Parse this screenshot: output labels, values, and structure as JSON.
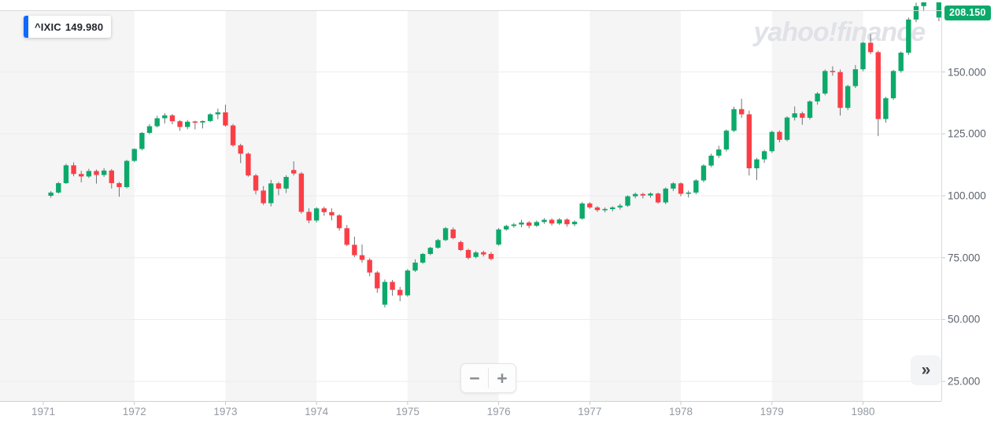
{
  "app": {
    "watermark": "yahoo!finance"
  },
  "legend": {
    "symbol": "^IXIC",
    "value": "149.980",
    "accent_color": "#0f69ff"
  },
  "price_badge": {
    "text": "208.150",
    "bg": "#0caa6a"
  },
  "controls": {
    "zoom_out": "−",
    "zoom_in": "+",
    "expand": "»"
  },
  "chart_data": {
    "type": "candlestick",
    "title": "^IXIC",
    "interval": "monthly",
    "x_axis": {
      "labels": [
        "1971",
        "1972",
        "1973",
        "1974",
        "1975",
        "1976",
        "1977",
        "1978",
        "1979",
        "1980"
      ]
    },
    "y_axis": {
      "labels": [
        "150.000",
        "125.000",
        "100.000",
        "75.000",
        "50.000",
        "25.000"
      ],
      "values": [
        150,
        125,
        100,
        75,
        50,
        25
      ],
      "range_visible": [
        25,
        175
      ],
      "position": "right"
    },
    "legend_position": "top-left",
    "grid": true,
    "colors": {
      "up": "#0caa6a",
      "down": "#fb3e46",
      "wick": "#6f7278",
      "grid": "#ececef",
      "stripe": "#f5f5f6",
      "border": "#d9dadd",
      "tick": "#c6c9ce",
      "watermark": "#e1e2e8"
    },
    "candle_format": [
      "date",
      "open",
      "high",
      "low",
      "close"
    ],
    "candles": [
      [
        "1971-02",
        100.0,
        101.9,
        99.2,
        101.3
      ],
      [
        "1971-03",
        101.3,
        105.6,
        100.9,
        105.1
      ],
      [
        "1971-04",
        105.1,
        112.9,
        104.8,
        112.3
      ],
      [
        "1971-05",
        112.3,
        113.5,
        107.9,
        108.8
      ],
      [
        "1971-06",
        108.8,
        110.1,
        105.4,
        107.8
      ],
      [
        "1971-07",
        107.8,
        110.9,
        107.2,
        110.0
      ],
      [
        "1971-08",
        110.0,
        110.6,
        104.9,
        108.4
      ],
      [
        "1971-09",
        108.4,
        111.2,
        107.6,
        110.2
      ],
      [
        "1971-10",
        110.2,
        110.8,
        102.9,
        105.1
      ],
      [
        "1971-11",
        105.1,
        105.6,
        99.6,
        103.5
      ],
      [
        "1971-12",
        103.5,
        114.5,
        103.0,
        114.1
      ],
      [
        "1972-01",
        114.1,
        119.2,
        113.6,
        118.9
      ],
      [
        "1972-02",
        118.9,
        125.8,
        118.4,
        125.4
      ],
      [
        "1972-03",
        125.4,
        128.9,
        124.9,
        128.1
      ],
      [
        "1972-04",
        128.1,
        132.3,
        127.6,
        131.3
      ],
      [
        "1972-05",
        131.3,
        133.4,
        129.2,
        132.5
      ],
      [
        "1972-06",
        132.5,
        133.0,
        128.9,
        130.1
      ],
      [
        "1972-07",
        130.1,
        130.6,
        126.2,
        127.8
      ],
      [
        "1972-08",
        127.8,
        130.6,
        126.9,
        129.9
      ],
      [
        "1972-09",
        129.9,
        130.3,
        126.8,
        129.6
      ],
      [
        "1972-10",
        129.6,
        130.4,
        127.2,
        130.2
      ],
      [
        "1972-11",
        130.2,
        133.4,
        129.7,
        132.9
      ],
      [
        "1972-12",
        132.9,
        135.2,
        130.9,
        133.7
      ],
      [
        "1973-01",
        133.7,
        136.8,
        127.9,
        128.4
      ],
      [
        "1973-02",
        128.4,
        129.0,
        119.8,
        120.4
      ],
      [
        "1973-03",
        120.4,
        121.0,
        113.2,
        117.0
      ],
      [
        "1973-04",
        117.0,
        117.5,
        107.7,
        108.2
      ],
      [
        "1973-05",
        108.2,
        108.8,
        100.6,
        102.1
      ],
      [
        "1973-06",
        102.1,
        103.9,
        96.3,
        97.0
      ],
      [
        "1973-07",
        97.0,
        106.4,
        95.7,
        105.0
      ],
      [
        "1973-08",
        105.0,
        105.6,
        100.2,
        102.9
      ],
      [
        "1973-09",
        102.9,
        108.3,
        101.1,
        107.6
      ],
      [
        "1973-10",
        110.4,
        113.9,
        108.2,
        109.0
      ],
      [
        "1973-11",
        109.0,
        109.6,
        92.8,
        93.5
      ],
      [
        "1973-12",
        93.5,
        94.9,
        88.9,
        90.0
      ],
      [
        "1974-01",
        90.0,
        95.4,
        89.2,
        94.9
      ],
      [
        "1974-02",
        94.9,
        95.6,
        91.9,
        93.4
      ],
      [
        "1974-03",
        93.4,
        94.9,
        90.1,
        92.1
      ],
      [
        "1974-04",
        92.1,
        92.6,
        85.9,
        86.9
      ],
      [
        "1974-05",
        86.9,
        88.2,
        79.7,
        80.2
      ],
      [
        "1974-06",
        80.2,
        83.5,
        75.2,
        76.0
      ],
      [
        "1974-07",
        76.0,
        80.3,
        72.9,
        74.1
      ],
      [
        "1974-08",
        74.1,
        74.8,
        67.5,
        69.0
      ],
      [
        "1974-09",
        69.0,
        69.6,
        60.8,
        62.6
      ],
      [
        "1974-10",
        56.0,
        66.2,
        54.9,
        65.2
      ],
      [
        "1974-11",
        65.2,
        66.0,
        59.6,
        62.0
      ],
      [
        "1974-12",
        62.0,
        63.2,
        57.4,
        59.8
      ],
      [
        "1975-01",
        59.8,
        70.4,
        59.2,
        69.8
      ],
      [
        "1975-02",
        69.8,
        74.3,
        69.2,
        73.0
      ],
      [
        "1975-03",
        73.0,
        76.9,
        72.5,
        76.5
      ],
      [
        "1975-04",
        76.5,
        79.4,
        76.0,
        79.0
      ],
      [
        "1975-05",
        79.0,
        82.6,
        78.6,
        82.1
      ],
      [
        "1975-06",
        82.1,
        87.4,
        81.7,
        86.9
      ],
      [
        "1975-07",
        86.4,
        87.2,
        82.4,
        82.9
      ],
      [
        "1975-08",
        81.3,
        81.9,
        77.6,
        78.1
      ],
      [
        "1975-09",
        78.1,
        78.6,
        74.3,
        74.9
      ],
      [
        "1975-10",
        75.3,
        77.7,
        74.7,
        77.1
      ],
      [
        "1975-11",
        77.2,
        77.8,
        75.5,
        76.3
      ],
      [
        "1975-12",
        76.5,
        77.2,
        73.9,
        74.5
      ],
      [
        "1976-01",
        80.3,
        87.0,
        79.8,
        86.4
      ],
      [
        "1976-02",
        86.4,
        88.3,
        85.9,
        87.8
      ],
      [
        "1976-03",
        87.8,
        89.0,
        87.1,
        88.4
      ],
      [
        "1976-04",
        88.4,
        90.3,
        87.3,
        89.2
      ],
      [
        "1976-05",
        89.2,
        89.8,
        86.9,
        87.9
      ],
      [
        "1976-06",
        87.9,
        90.0,
        87.4,
        89.4
      ],
      [
        "1976-07",
        89.4,
        91.0,
        88.7,
        90.3
      ],
      [
        "1976-08",
        90.3,
        90.9,
        88.0,
        88.8
      ],
      [
        "1976-09",
        88.8,
        91.0,
        88.2,
        90.4
      ],
      [
        "1976-10",
        90.4,
        90.9,
        87.5,
        88.5
      ],
      [
        "1976-11",
        88.5,
        90.1,
        87.7,
        89.5
      ],
      [
        "1976-12",
        90.8,
        97.5,
        90.3,
        96.9
      ],
      [
        "1977-01",
        96.9,
        97.4,
        94.7,
        95.3
      ],
      [
        "1977-02",
        95.3,
        95.8,
        93.5,
        94.2
      ],
      [
        "1977-03",
        94.2,
        95.3,
        93.3,
        94.6
      ],
      [
        "1977-04",
        94.6,
        95.8,
        93.7,
        95.3
      ],
      [
        "1977-05",
        95.3,
        96.8,
        94.4,
        96.0
      ],
      [
        "1977-06",
        96.0,
        100.2,
        95.5,
        99.8
      ],
      [
        "1977-07",
        99.8,
        101.3,
        99.0,
        100.7
      ],
      [
        "1977-08",
        100.7,
        101.2,
        98.9,
        100.1
      ],
      [
        "1977-09",
        100.1,
        101.4,
        99.2,
        100.9
      ],
      [
        "1977-10",
        100.9,
        101.3,
        96.8,
        97.3
      ],
      [
        "1977-11",
        97.3,
        103.4,
        96.6,
        102.9
      ],
      [
        "1977-12",
        102.9,
        105.5,
        101.9,
        105.0
      ],
      [
        "1978-01",
        105.0,
        105.4,
        99.8,
        100.8
      ],
      [
        "1978-02",
        100.8,
        102.1,
        99.3,
        101.3
      ],
      [
        "1978-03",
        101.3,
        106.7,
        100.6,
        106.2
      ],
      [
        "1978-04",
        106.2,
        112.7,
        105.5,
        112.2
      ],
      [
        "1978-05",
        112.2,
        117.0,
        111.5,
        116.2
      ],
      [
        "1978-06",
        116.2,
        120.2,
        115.3,
        118.7
      ],
      [
        "1978-07",
        118.7,
        126.8,
        117.9,
        126.3
      ],
      [
        "1978-08",
        126.3,
        136.0,
        125.7,
        135.0
      ],
      [
        "1978-09",
        135.0,
        139.2,
        131.5,
        132.9
      ],
      [
        "1978-10",
        132.9,
        134.4,
        108.2,
        111.1
      ],
      [
        "1978-11",
        111.1,
        115.3,
        106.4,
        114.7
      ],
      [
        "1978-12",
        114.7,
        118.6,
        113.3,
        118.0
      ],
      [
        "1979-01",
        118.0,
        126.3,
        117.3,
        125.8
      ],
      [
        "1979-02",
        125.8,
        126.4,
        121.6,
        122.6
      ],
      [
        "1979-03",
        122.6,
        132.1,
        122.0,
        131.6
      ],
      [
        "1979-04",
        131.6,
        136.1,
        130.4,
        133.3
      ],
      [
        "1979-05",
        133.3,
        134.0,
        128.7,
        131.5
      ],
      [
        "1979-06",
        131.5,
        138.6,
        130.8,
        138.1
      ],
      [
        "1979-07",
        138.1,
        141.9,
        136.8,
        141.3
      ],
      [
        "1979-08",
        141.3,
        151.0,
        140.6,
        150.4
      ],
      [
        "1979-09",
        150.4,
        152.3,
        148.5,
        149.98
      ],
      [
        "1979-10",
        149.98,
        151.0,
        132.4,
        135.5
      ],
      [
        "1979-11",
        135.5,
        144.8,
        134.6,
        144.3
      ],
      [
        "1979-12",
        144.3,
        152.8,
        143.5,
        151.1
      ],
      [
        "1980-01",
        151.1,
        162.3,
        150.3,
        161.8
      ],
      [
        "1980-02",
        161.8,
        165.3,
        157.2,
        158.0
      ],
      [
        "1980-03",
        158.0,
        158.6,
        124.1,
        131.0
      ],
      [
        "1980-04",
        131.0,
        140.0,
        129.5,
        139.4
      ],
      [
        "1980-05",
        139.4,
        150.9,
        138.7,
        150.4
      ],
      [
        "1980-06",
        150.4,
        158.3,
        149.7,
        157.8
      ],
      [
        "1980-07",
        157.8,
        172.0,
        156.9,
        171.2
      ],
      [
        "1980-08",
        171.2,
        178.0,
        170.1,
        176.6
      ],
      [
        "1980-09",
        176.6,
        183.5,
        174.5,
        182.9
      ],
      [
        "1980-10",
        182.9,
        195.0,
        180.8,
        192.7
      ],
      [
        "1980-11",
        172.0,
        210.0,
        170.5,
        208.15
      ]
    ]
  }
}
